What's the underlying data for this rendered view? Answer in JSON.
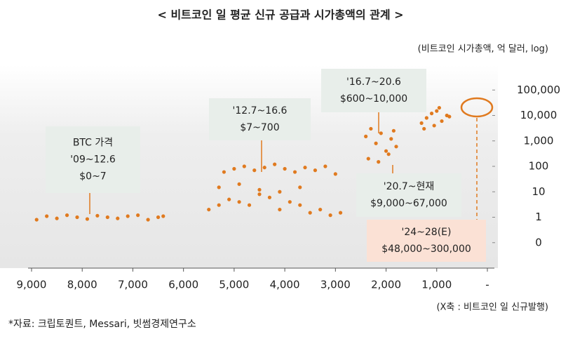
{
  "chart_data": {
    "type": "scatter",
    "title": "< 비트코인 일 평균 신규 공급과 시가총액의 관계 >",
    "y_label": "(비트코인 시가총액, 억 달러, log)",
    "x_label": "(X축 : 비트코인 일 신규발행)",
    "source": "*자료: 크립토퀀트, Messari, 빗썸경제연구소",
    "color": "#e07a1f",
    "log_y": true,
    "xlim": [
      9000,
      0
    ],
    "ylim": [
      0.01,
      1000000
    ],
    "xticks": [
      {
        "value": 9000,
        "label": "9,000"
      },
      {
        "value": 8000,
        "label": "8,000"
      },
      {
        "value": 7000,
        "label": "7,000"
      },
      {
        "value": 6000,
        "label": "6,000"
      },
      {
        "value": 5000,
        "label": "5,000"
      },
      {
        "value": 4000,
        "label": "4,000"
      },
      {
        "value": 3000,
        "label": "3,000"
      },
      {
        "value": 2000,
        "label": "2,000"
      },
      {
        "value": 1000,
        "label": "1,000"
      },
      {
        "value": 0,
        "label": "-"
      }
    ],
    "yticks": [
      {
        "value": 100000,
        "label": "100,000"
      },
      {
        "value": 10000,
        "label": "10,000"
      },
      {
        "value": 1000,
        "label": "1,000"
      },
      100,
      10,
      1,
      {
        "value": 0.1,
        "label": "0"
      }
    ],
    "x": [
      8900,
      8700,
      8500,
      8300,
      8100,
      7900,
      7700,
      7500,
      7300,
      7100,
      6900,
      6700,
      6500,
      6400,
      5500,
      5300,
      5100,
      4900,
      4700,
      4500,
      4300,
      4100,
      3900,
      3700,
      3500,
      3300,
      3100,
      2900,
      5200,
      5000,
      4800,
      4600,
      4400,
      4200,
      4000,
      3800,
      3600,
      3400,
      3200,
      3000,
      5300,
      4900,
      4500,
      4100,
      3700,
      2400,
      2300,
      2200,
      2100,
      2000,
      1900,
      1800,
      2350,
      2150,
      1950,
      1850,
      1300,
      1200,
      1100,
      1000,
      900,
      800,
      750,
      1250,
      1050,
      950
    ],
    "values": [
      0.8,
      1.1,
      0.9,
      1.2,
      1,
      0.85,
      1.15,
      1,
      0.9,
      1.1,
      1.2,
      0.8,
      1,
      1.1,
      2,
      3,
      5,
      4,
      3,
      8,
      6,
      2,
      4,
      3,
      1.5,
      2,
      1.2,
      1.5,
      60,
      80,
      100,
      70,
      90,
      120,
      80,
      60,
      90,
      70,
      100,
      50,
      15,
      20,
      12,
      10,
      15,
      1500,
      3000,
      800,
      2000,
      400,
      1200,
      600,
      200,
      150,
      300,
      2500,
      5000,
      8000,
      12000,
      15000,
      6000,
      10000,
      9000,
      3000,
      4000,
      20000
    ],
    "annotations": [
      {
        "lines": [
          "BTC 가격",
          "'09~12.6",
          "$0~7"
        ]
      },
      {
        "lines": [
          "'12.7~16.6",
          "$7~700"
        ]
      },
      {
        "lines": [
          "'16.7~20.6",
          "$600~10,000"
        ]
      },
      {
        "lines": [
          "'20.7~현재",
          "$9,000~67,000"
        ]
      },
      {
        "lines": [
          "'24~28(E)",
          "$48,000~300,000"
        ]
      }
    ]
  }
}
